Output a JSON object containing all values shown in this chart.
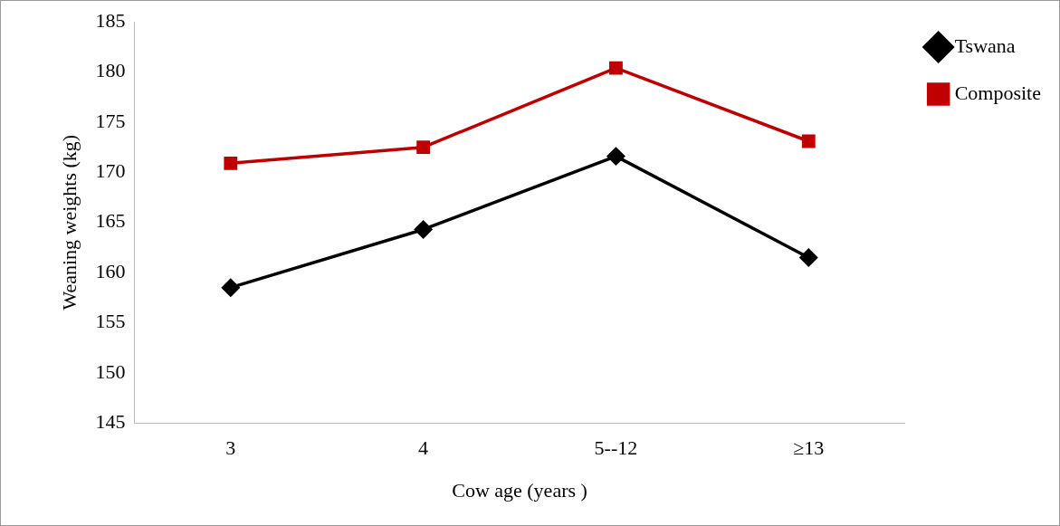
{
  "chart_data": {
    "type": "line",
    "xlabel": "Cow age (years )",
    "ylabel": "Weaning weights (kg)",
    "categories": [
      "3",
      "4",
      "5--12",
      "≥13"
    ],
    "series": [
      {
        "name": "Tswana",
        "color": "#000000",
        "marker": "diamond",
        "values": [
          158.5,
          164.3,
          171.6,
          161.5
        ]
      },
      {
        "name": "Composite",
        "color": "#c00000",
        "marker": "square",
        "values": [
          170.9,
          172.5,
          180.4,
          173.1
        ]
      }
    ],
    "ylim": [
      145,
      185
    ],
    "yticks": [
      145,
      150,
      155,
      160,
      165,
      170,
      175,
      180,
      185
    ],
    "grid": false,
    "legend": "top right",
    "line_style": "solid"
  }
}
